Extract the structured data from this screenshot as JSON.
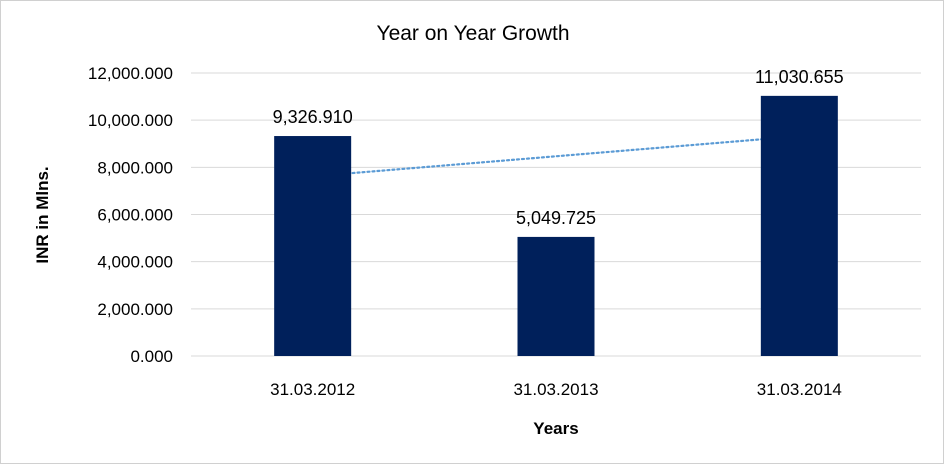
{
  "chart_data": {
    "type": "bar",
    "title": "Year on Year Growth",
    "xlabel": "Years",
    "ylabel": "INR in Mlns.",
    "categories": [
      "31.03.2012",
      "31.03.2013",
      "31.03.2014"
    ],
    "values": [
      9326.91,
      5049.725,
      11030.655
    ],
    "value_labels": [
      "9,326.910",
      "5,049.725",
      "11,030.655"
    ],
    "ylim": [
      0,
      12000
    ],
    "yticks": [
      0,
      2000,
      4000,
      6000,
      8000,
      10000,
      12000
    ],
    "ytick_labels": [
      "0.000",
      "2,000.000",
      "4,000.000",
      "6,000.000",
      "8,000.000",
      "10,000.000",
      "12,000.000"
    ],
    "grid": true,
    "trendline": "linear",
    "colors": {
      "bar": "#00205b",
      "trendline": "#5b9bd5",
      "grid": "#d9d9d9"
    }
  }
}
